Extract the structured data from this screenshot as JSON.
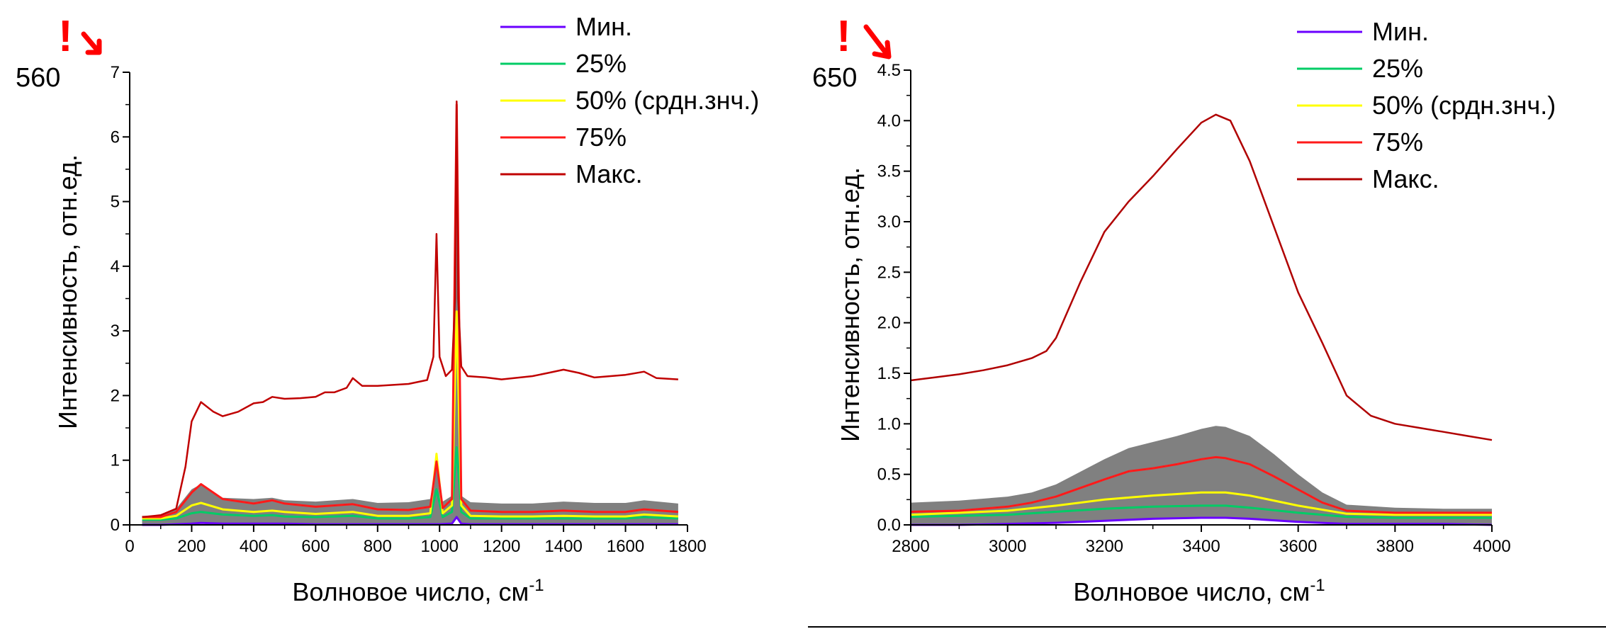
{
  "chart_data": [
    {
      "type": "line",
      "corner_label": "560",
      "mark": "!",
      "xlabel": "Волновое число, см",
      "xlabel_sup": "-1",
      "ylabel": "Интенсивность, отн.ед.",
      "xlim": [
        0,
        1800
      ],
      "ylim": [
        0,
        7
      ],
      "x_ticks": [
        0,
        200,
        400,
        600,
        800,
        1000,
        1200,
        1400,
        1600,
        1800
      ],
      "x_tick_labels": [
        "0",
        "200",
        "400",
        "600",
        "800",
        "1000",
        "1200",
        "1400",
        "1600",
        "1800"
      ],
      "y_ticks": [
        0,
        1,
        2,
        3,
        4,
        5,
        6,
        7
      ],
      "y_tick_labels": [
        "0",
        "1",
        "2",
        "3",
        "4",
        "5",
        "6",
        "7"
      ],
      "legend": "top-right",
      "series": [
        {
          "name": "Мин.",
          "color": "#6a00ff",
          "x": [
            40,
            100,
            150,
            200,
            230,
            300,
            400,
            500,
            600,
            700,
            800,
            900,
            980,
            1000,
            1040,
            1055,
            1070,
            1100,
            1200,
            1300,
            1400,
            1500,
            1600,
            1700,
            1770
          ],
          "y": [
            0.0,
            0.0,
            0.01,
            0.02,
            0.03,
            0.02,
            0.02,
            0.02,
            0.01,
            0.01,
            0.01,
            0.01,
            0.01,
            0.01,
            0.02,
            0.12,
            0.02,
            0.01,
            0.01,
            0.01,
            0.01,
            0.01,
            0.01,
            0.01,
            0.01
          ]
        },
        {
          "name": "25%",
          "color": "#00cc66",
          "x": [
            40,
            100,
            150,
            200,
            230,
            300,
            400,
            460,
            500,
            600,
            720,
            800,
            900,
            970,
            990,
            1010,
            1040,
            1055,
            1070,
            1100,
            1200,
            1300,
            1400,
            1500,
            1600,
            1660,
            1770
          ],
          "y": [
            0.08,
            0.08,
            0.1,
            0.18,
            0.2,
            0.16,
            0.14,
            0.15,
            0.13,
            0.12,
            0.14,
            0.1,
            0.1,
            0.12,
            0.55,
            0.12,
            0.2,
            1.2,
            0.2,
            0.1,
            0.1,
            0.1,
            0.1,
            0.1,
            0.1,
            0.12,
            0.1
          ]
        },
        {
          "name": "50% (срдн.знч.)",
          "color": "#ffff00",
          "x": [
            40,
            100,
            150,
            200,
            230,
            300,
            400,
            460,
            500,
            600,
            720,
            800,
            900,
            970,
            990,
            1010,
            1040,
            1055,
            1070,
            1100,
            1200,
            1300,
            1400,
            1500,
            1600,
            1660,
            1770
          ],
          "y": [
            0.1,
            0.1,
            0.14,
            0.3,
            0.34,
            0.24,
            0.2,
            0.22,
            0.2,
            0.17,
            0.2,
            0.14,
            0.14,
            0.18,
            1.1,
            0.18,
            0.3,
            3.3,
            0.3,
            0.14,
            0.13,
            0.13,
            0.14,
            0.13,
            0.13,
            0.16,
            0.13
          ]
        },
        {
          "name": "75%",
          "color": "#ff1a1a",
          "x": [
            40,
            100,
            150,
            200,
            230,
            300,
            400,
            460,
            500,
            600,
            720,
            800,
            900,
            970,
            990,
            1010,
            1040,
            1055,
            1070,
            1100,
            1200,
            1300,
            1400,
            1500,
            1600,
            1660,
            1770
          ],
          "y": [
            0.12,
            0.12,
            0.2,
            0.5,
            0.63,
            0.4,
            0.33,
            0.38,
            0.33,
            0.28,
            0.32,
            0.24,
            0.23,
            0.28,
            0.98,
            0.26,
            0.4,
            6.5,
            0.4,
            0.22,
            0.2,
            0.2,
            0.22,
            0.2,
            0.2,
            0.24,
            0.2
          ]
        },
        {
          "name": "Макс.",
          "color": "#c00000",
          "x": [
            40,
            80,
            100,
            150,
            180,
            200,
            230,
            270,
            300,
            350,
            400,
            430,
            460,
            500,
            550,
            600,
            630,
            660,
            700,
            720,
            750,
            800,
            900,
            960,
            980,
            990,
            1000,
            1020,
            1040,
            1050,
            1055,
            1060,
            1070,
            1090,
            1150,
            1200,
            1300,
            1350,
            1400,
            1450,
            1500,
            1600,
            1660,
            1700,
            1770
          ],
          "y": [
            0.12,
            0.14,
            0.15,
            0.25,
            0.9,
            1.6,
            1.9,
            1.75,
            1.68,
            1.75,
            1.88,
            1.9,
            1.98,
            1.95,
            1.96,
            1.98,
            2.05,
            2.05,
            2.12,
            2.27,
            2.15,
            2.15,
            2.18,
            2.24,
            2.6,
            4.5,
            2.6,
            2.3,
            2.4,
            3.5,
            6.55,
            3.5,
            2.45,
            2.3,
            2.28,
            2.25,
            2.3,
            2.35,
            2.4,
            2.35,
            2.28,
            2.32,
            2.37,
            2.27,
            2.25
          ]
        }
      ],
      "band": {
        "color": "#808080",
        "x": [
          40,
          100,
          150,
          200,
          230,
          300,
          400,
          460,
          500,
          600,
          720,
          800,
          900,
          970,
          990,
          1010,
          1040,
          1055,
          1070,
          1100,
          1200,
          1300,
          1400,
          1500,
          1600,
          1660,
          1770
        ],
        "lower": [
          0.0,
          0.0,
          0.01,
          0.02,
          0.03,
          0.02,
          0.02,
          0.02,
          0.02,
          0.01,
          0.01,
          0.01,
          0.01,
          0.01,
          0.01,
          0.01,
          0.02,
          0.12,
          0.02,
          0.01,
          0.01,
          0.01,
          0.01,
          0.01,
          0.01,
          0.01,
          0.01
        ],
        "upper": [
          0.14,
          0.14,
          0.25,
          0.55,
          0.63,
          0.42,
          0.4,
          0.42,
          0.38,
          0.36,
          0.4,
          0.34,
          0.35,
          0.4,
          1.0,
          0.36,
          0.45,
          6.5,
          0.45,
          0.35,
          0.33,
          0.33,
          0.36,
          0.34,
          0.34,
          0.38,
          0.33
        ]
      }
    },
    {
      "type": "line",
      "corner_label": "650",
      "mark": "!",
      "xlabel": "Волновое число, см",
      "xlabel_sup": "-1",
      "ylabel": "Интенсивность, отн.ед.",
      "xlim": [
        2800,
        4000
      ],
      "ylim": [
        0,
        4.5
      ],
      "x_ticks": [
        2800,
        3000,
        3200,
        3400,
        3600,
        3800,
        4000
      ],
      "x_tick_labels": [
        "2800",
        "3000",
        "3200",
        "3400",
        "3600",
        "3800",
        "4000"
      ],
      "y_ticks": [
        0,
        0.5,
        1.0,
        1.5,
        2.0,
        2.5,
        3.0,
        3.5,
        4.0,
        4.5
      ],
      "y_tick_labels": [
        "0.0",
        "0.5",
        "1.0",
        "1.5",
        "2.0",
        "2.5",
        "3.0",
        "3.5",
        "4.0",
        "4.5"
      ],
      "legend": "top-right",
      "series": [
        {
          "name": "Мин.",
          "color": "#6a00ff",
          "x": [
            2800,
            2900,
            3000,
            3100,
            3200,
            3300,
            3400,
            3450,
            3500,
            3600,
            3700,
            3800,
            3900,
            4000
          ],
          "y": [
            0.0,
            0.0,
            0.01,
            0.02,
            0.04,
            0.06,
            0.07,
            0.07,
            0.06,
            0.03,
            0.01,
            0.01,
            0.01,
            0.0
          ]
        },
        {
          "name": "25%",
          "color": "#00cc66",
          "x": [
            2800,
            2900,
            3000,
            3100,
            3200,
            3300,
            3400,
            3450,
            3500,
            3600,
            3700,
            3800,
            3900,
            4000
          ],
          "y": [
            0.08,
            0.09,
            0.1,
            0.13,
            0.16,
            0.18,
            0.19,
            0.19,
            0.17,
            0.12,
            0.08,
            0.07,
            0.07,
            0.07
          ]
        },
        {
          "name": "50% (срдн.знч.)",
          "color": "#ffff00",
          "x": [
            2800,
            2900,
            3000,
            3100,
            3200,
            3300,
            3400,
            3450,
            3500,
            3600,
            3700,
            3800,
            3900,
            4000
          ],
          "y": [
            0.1,
            0.12,
            0.14,
            0.19,
            0.25,
            0.29,
            0.32,
            0.32,
            0.29,
            0.19,
            0.11,
            0.1,
            0.1,
            0.1
          ]
        },
        {
          "name": "75%",
          "color": "#ff1a1a",
          "x": [
            2800,
            2900,
            3000,
            3050,
            3100,
            3200,
            3250,
            3300,
            3350,
            3400,
            3430,
            3450,
            3500,
            3550,
            3600,
            3650,
            3700,
            3800,
            3900,
            4000
          ],
          "y": [
            0.13,
            0.14,
            0.18,
            0.22,
            0.28,
            0.45,
            0.53,
            0.56,
            0.6,
            0.65,
            0.67,
            0.66,
            0.6,
            0.48,
            0.35,
            0.22,
            0.14,
            0.12,
            0.12,
            0.12
          ]
        },
        {
          "name": "Макс.",
          "color": "#b00000",
          "x": [
            2800,
            2850,
            2900,
            2950,
            3000,
            3050,
            3080,
            3100,
            3150,
            3200,
            3250,
            3300,
            3350,
            3400,
            3430,
            3460,
            3500,
            3550,
            3600,
            3650,
            3700,
            3750,
            3800,
            3850,
            3900,
            3950,
            4000
          ],
          "y": [
            1.43,
            1.46,
            1.49,
            1.53,
            1.58,
            1.65,
            1.72,
            1.85,
            2.4,
            2.9,
            3.2,
            3.45,
            3.72,
            3.98,
            4.06,
            4.0,
            3.6,
            2.95,
            2.3,
            1.8,
            1.28,
            1.08,
            1.0,
            0.96,
            0.92,
            0.88,
            0.84
          ]
        }
      ],
      "band": {
        "color": "#808080",
        "x": [
          2800,
          2900,
          3000,
          3050,
          3100,
          3200,
          3250,
          3300,
          3350,
          3400,
          3430,
          3450,
          3500,
          3550,
          3600,
          3650,
          3700,
          3800,
          3900,
          4000
        ],
        "lower": [
          0.0,
          0.0,
          0.01,
          0.01,
          0.02,
          0.04,
          0.05,
          0.06,
          0.06,
          0.07,
          0.07,
          0.07,
          0.06,
          0.05,
          0.03,
          0.02,
          0.01,
          0.01,
          0.01,
          0.0
        ],
        "upper": [
          0.22,
          0.24,
          0.28,
          0.32,
          0.4,
          0.65,
          0.76,
          0.82,
          0.88,
          0.95,
          0.98,
          0.97,
          0.88,
          0.7,
          0.5,
          0.32,
          0.2,
          0.17,
          0.16,
          0.16
        ]
      }
    }
  ]
}
